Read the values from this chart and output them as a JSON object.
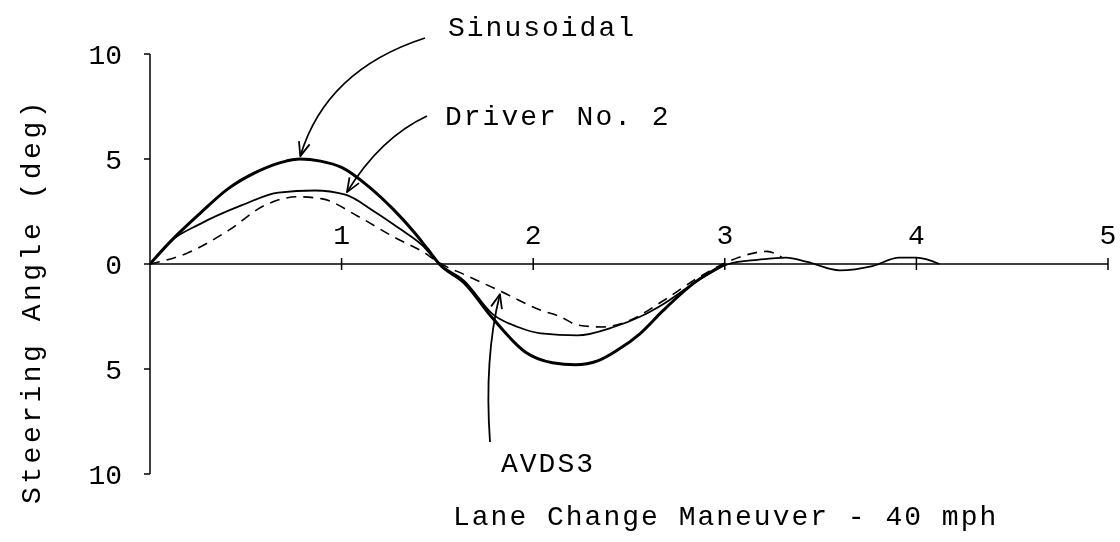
{
  "chart_data": {
    "type": "line",
    "xlabel": "Lane Change Maneuver - 40 mph",
    "ylabel": "Steering Angle (deg)",
    "xlim": [
      0,
      5
    ],
    "xticks": [
      1,
      2,
      3,
      4,
      5
    ],
    "ylim": [
      -10,
      10
    ],
    "yticks": [
      10,
      5,
      0,
      {
        "value": -5,
        "label": "5"
      },
      {
        "value": -10,
        "label": "10"
      }
    ],
    "marker": "none",
    "series": [
      {
        "name": "Sinusoidal",
        "color": "#000000",
        "line_style": "solid",
        "x": [
          0,
          0.11,
          0.26,
          0.41,
          0.56,
          0.71,
          0.78,
          0.89,
          1.0,
          1.14,
          1.27,
          1.38,
          1.45,
          1.51,
          1.64,
          1.79,
          1.96,
          2.1,
          2.22,
          2.34,
          2.44,
          2.56,
          2.68,
          2.84,
          3.0
        ],
        "values": [
          0,
          1.1,
          2.4,
          3.6,
          4.4,
          4.9,
          5.0,
          4.9,
          4.6,
          3.7,
          2.6,
          1.5,
          0.7,
          0,
          -0.9,
          -2.6,
          -4.2,
          -4.7,
          -4.8,
          -4.6,
          -4.1,
          -3.3,
          -2.2,
          -0.9,
          0
        ]
      },
      {
        "name": "Driver No. 2",
        "color": "#000000",
        "line_style": "solid",
        "x": [
          0,
          0.11,
          0.26,
          0.48,
          0.67,
          0.86,
          1.02,
          1.17,
          1.3,
          1.42,
          1.51,
          1.64,
          1.79,
          1.92,
          2.04,
          2.23,
          2.42,
          2.56,
          2.68,
          2.84,
          2.93,
          3.02,
          3.17,
          3.32,
          3.43,
          3.6,
          3.77,
          3.91,
          4.0,
          4.12
        ],
        "values": [
          0,
          1.1,
          1.9,
          2.8,
          3.4,
          3.5,
          3.3,
          2.5,
          1.7,
          0.9,
          0,
          -0.8,
          -2.4,
          -3.0,
          -3.3,
          -3.4,
          -3.0,
          -2.5,
          -1.9,
          -0.9,
          -0.4,
          0,
          0.2,
          0.3,
          0.1,
          -0.3,
          -0.1,
          0.3,
          0.3,
          0
        ]
      },
      {
        "name": "AVDS3",
        "color": "#000000",
        "line_style": "dashed",
        "x": [
          0,
          0.19,
          0.41,
          0.6,
          0.77,
          0.9,
          1.08,
          1.27,
          1.42,
          1.52,
          1.64,
          1.83,
          2.04,
          2.14,
          2.23,
          2.36,
          2.5,
          2.67,
          2.87,
          2.99,
          3.1,
          3.22,
          3.3
        ],
        "values": [
          0,
          0.5,
          1.6,
          2.8,
          3.2,
          3.1,
          2.3,
          1.3,
          0.6,
          0,
          -0.5,
          -1.3,
          -2.2,
          -2.5,
          -2.9,
          -3.0,
          -2.7,
          -1.8,
          -0.6,
          0,
          0.4,
          0.6,
          0.3
        ]
      }
    ]
  }
}
